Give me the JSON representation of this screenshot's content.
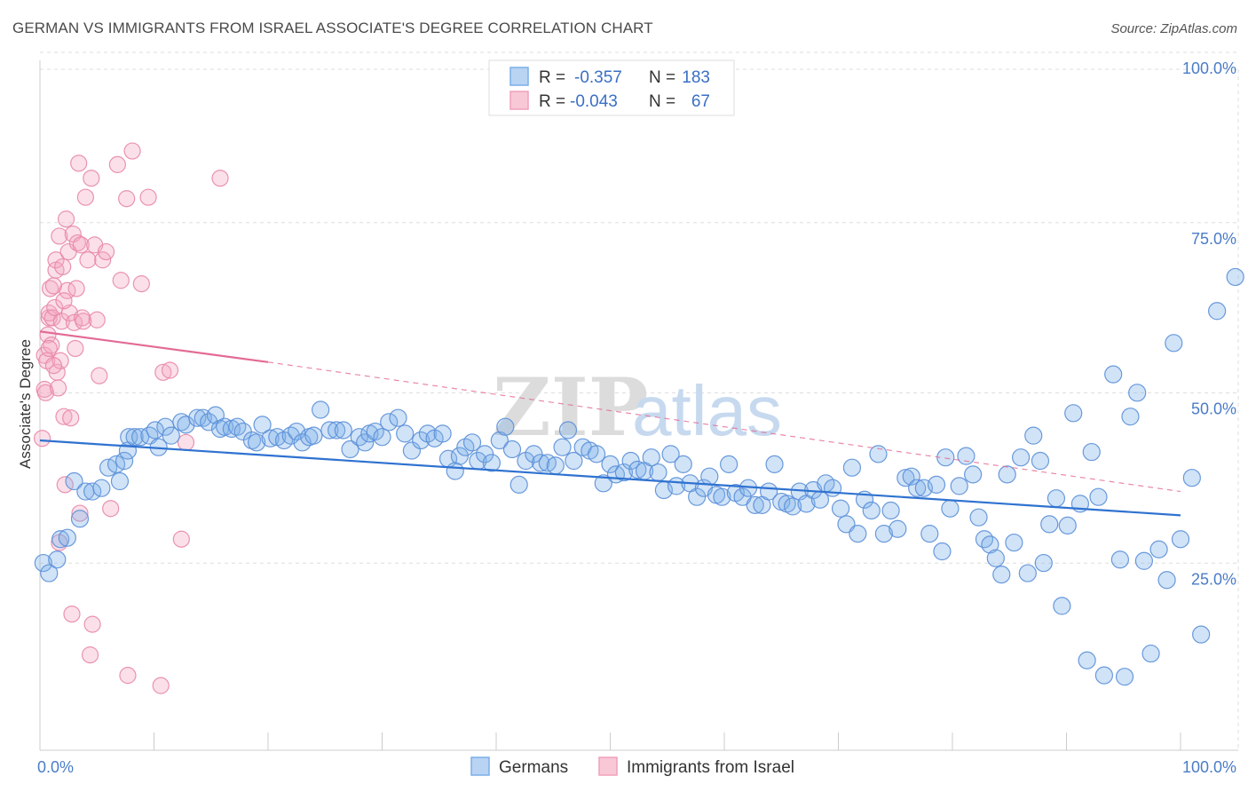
{
  "title": "GERMAN VS IMMIGRANTS FROM ISRAEL ASSOCIATE'S DEGREE CORRELATION CHART",
  "source": "Source: ZipAtlas.com",
  "watermark": {
    "zip": "ZIP",
    "atlas": "atlas"
  },
  "legend": {
    "r_label": "R =",
    "n_label": "N =",
    "series": [
      {
        "r": "-0.357",
        "n": "183"
      },
      {
        "r": "-0.043",
        "n": "67"
      }
    ]
  },
  "chart_data": {
    "type": "scatter",
    "title": "GERMAN VS IMMIGRANTS FROM ISRAEL ASSOCIATE'S DEGREE CORRELATION CHART",
    "xlabel": "",
    "ylabel": "Associate's Degree",
    "xlim": [
      0,
      100
    ],
    "ylim": [
      0,
      100
    ],
    "x_tick_labels": [
      "0.0%",
      "100.0%"
    ],
    "y_tick_labels": [
      "25.0%",
      "50.0%",
      "75.0%",
      "100.0%"
    ],
    "y_ticks": [
      25,
      50,
      75,
      100
    ],
    "grid": true,
    "legend_position": "top-center",
    "series": [
      {
        "name": "Germans",
        "color": "#7aaee8",
        "edge": "#5a8fd8",
        "r": -0.357,
        "n": 183,
        "trend": {
          "x": [
            0,
            100
          ],
          "y": [
            45.5,
            34.5
          ],
          "color": "#2f72d0"
        },
        "points": [
          [
            0.3,
            27.5
          ],
          [
            1.5,
            28
          ],
          [
            0.8,
            26
          ],
          [
            1.8,
            31
          ],
          [
            2.4,
            31.2
          ],
          [
            3,
            39.5
          ],
          [
            3.5,
            34
          ],
          [
            4,
            38
          ],
          [
            4.6,
            38
          ],
          [
            5.4,
            38.5
          ],
          [
            6,
            41.5
          ],
          [
            6.7,
            42
          ],
          [
            7,
            39.5
          ],
          [
            7.4,
            42.5
          ],
          [
            7.7,
            44
          ],
          [
            7.8,
            46
          ],
          [
            8.3,
            46
          ],
          [
            8.8,
            46
          ],
          [
            9.6,
            46.2
          ],
          [
            10.1,
            47
          ],
          [
            10.4,
            44.5
          ],
          [
            11,
            47.5
          ],
          [
            11.5,
            46.2
          ],
          [
            12.4,
            48.2
          ],
          [
            12.8,
            47.8
          ],
          [
            13.8,
            48.8
          ],
          [
            14.3,
            48.8
          ],
          [
            14.8,
            48.2
          ],
          [
            15.4,
            49.2
          ],
          [
            15.8,
            47.2
          ],
          [
            16.2,
            47.5
          ],
          [
            16.8,
            47.2
          ],
          [
            17.3,
            47.5
          ],
          [
            17.8,
            46.8
          ],
          [
            18.6,
            45.5
          ],
          [
            19,
            45.2
          ],
          [
            19.5,
            47.8
          ],
          [
            20.2,
            45.8
          ],
          [
            20.8,
            46
          ],
          [
            21.4,
            45.5
          ],
          [
            22,
            46.2
          ],
          [
            22.5,
            46.8
          ],
          [
            23,
            45.2
          ],
          [
            23.6,
            46
          ],
          [
            24,
            46.2
          ],
          [
            24.6,
            50
          ],
          [
            25.4,
            47
          ],
          [
            26,
            47
          ],
          [
            26.6,
            47
          ],
          [
            27.2,
            44.2
          ],
          [
            28,
            46
          ],
          [
            28.5,
            45.2
          ],
          [
            28.9,
            46.5
          ],
          [
            29.4,
            46.8
          ],
          [
            30,
            46
          ],
          [
            30.6,
            48.2
          ],
          [
            31.4,
            48.8
          ],
          [
            32,
            46.5
          ],
          [
            32.6,
            44
          ],
          [
            33.4,
            45.5
          ],
          [
            34,
            46.5
          ],
          [
            34.6,
            45.8
          ],
          [
            35.3,
            46.5
          ],
          [
            35.8,
            42.8
          ],
          [
            36.4,
            41
          ],
          [
            36.8,
            43.2
          ],
          [
            37.3,
            44.5
          ],
          [
            37.9,
            45.2
          ],
          [
            38.4,
            42.5
          ],
          [
            39,
            43.5
          ],
          [
            39.6,
            42.2
          ],
          [
            40.3,
            45.5
          ],
          [
            40.8,
            47.5
          ],
          [
            41.4,
            44.2
          ],
          [
            42,
            39
          ],
          [
            42.6,
            42.5
          ],
          [
            43.3,
            43.5
          ],
          [
            43.9,
            42.2
          ],
          [
            44.5,
            42.2
          ],
          [
            45.2,
            41.8
          ],
          [
            45.8,
            44.5
          ],
          [
            46.3,
            47
          ],
          [
            46.8,
            42.5
          ],
          [
            47.6,
            44.5
          ],
          [
            48.2,
            44
          ],
          [
            48.8,
            43.5
          ],
          [
            49.4,
            39.2
          ],
          [
            50,
            42
          ],
          [
            50.5,
            40.5
          ],
          [
            51.2,
            40.8
          ],
          [
            51.8,
            42.5
          ],
          [
            52.4,
            41.2
          ],
          [
            53,
            41
          ],
          [
            53.6,
            43
          ],
          [
            54.2,
            40.8
          ],
          [
            54.7,
            38.2
          ],
          [
            55.3,
            43.5
          ],
          [
            55.8,
            38.8
          ],
          [
            56.4,
            42
          ],
          [
            57,
            39.2
          ],
          [
            57.6,
            37.2
          ],
          [
            58.2,
            38.5
          ],
          [
            58.7,
            40.2
          ],
          [
            59.3,
            37.5
          ],
          [
            59.8,
            37.2
          ],
          [
            60.4,
            42
          ],
          [
            61,
            37.8
          ],
          [
            61.6,
            37.2
          ],
          [
            62.1,
            38.5
          ],
          [
            62.7,
            36
          ],
          [
            63.3,
            36
          ],
          [
            63.9,
            38
          ],
          [
            64.4,
            42
          ],
          [
            65,
            36.5
          ],
          [
            65.5,
            36.2
          ],
          [
            66,
            35.8
          ],
          [
            66.6,
            38
          ],
          [
            67.2,
            36.2
          ],
          [
            67.8,
            38.2
          ],
          [
            68.4,
            36.8
          ],
          [
            68.9,
            39.2
          ],
          [
            69.5,
            38.5
          ],
          [
            70.2,
            35.5
          ],
          [
            70.7,
            33.2
          ],
          [
            71.2,
            41.5
          ],
          [
            71.7,
            31.8
          ],
          [
            72.3,
            36.8
          ],
          [
            72.9,
            35.2
          ],
          [
            73.5,
            43.5
          ],
          [
            74,
            31.8
          ],
          [
            74.6,
            35.2
          ],
          [
            75.2,
            32.5
          ],
          [
            75.9,
            40
          ],
          [
            76.4,
            40.2
          ],
          [
            76.9,
            38.5
          ],
          [
            77.5,
            38.5
          ],
          [
            78,
            31.8
          ],
          [
            78.6,
            39
          ],
          [
            79.1,
            29.2
          ],
          [
            79.4,
            43
          ],
          [
            79.8,
            35.5
          ],
          [
            80.6,
            38.8
          ],
          [
            81.2,
            43.2
          ],
          [
            81.8,
            40.5
          ],
          [
            82.3,
            34.2
          ],
          [
            82.8,
            31
          ],
          [
            83.3,
            30.2
          ],
          [
            83.8,
            28.2
          ],
          [
            84.3,
            25.8
          ],
          [
            84.8,
            40.5
          ],
          [
            85.4,
            30.5
          ],
          [
            86,
            43
          ],
          [
            86.6,
            26
          ],
          [
            87.1,
            46.2
          ],
          [
            87.7,
            42.5
          ],
          [
            88,
            27.5
          ],
          [
            88.5,
            33.2
          ],
          [
            89.1,
            37
          ],
          [
            89.6,
            21.2
          ],
          [
            90.1,
            33
          ],
          [
            90.6,
            49.5
          ],
          [
            91.2,
            36.2
          ],
          [
            91.8,
            13.2
          ],
          [
            92.2,
            43.8
          ],
          [
            92.8,
            37.2
          ],
          [
            93.3,
            11
          ],
          [
            94.1,
            55.2
          ],
          [
            94.7,
            28
          ],
          [
            95.1,
            10.8
          ],
          [
            95.6,
            49
          ],
          [
            96.2,
            52.5
          ],
          [
            96.8,
            27.8
          ],
          [
            97.4,
            14.2
          ],
          [
            98.1,
            29.5
          ],
          [
            98.8,
            25
          ],
          [
            99.4,
            59.8
          ],
          [
            100,
            31
          ],
          [
            101,
            40
          ],
          [
            101.8,
            17
          ],
          [
            103.2,
            64.5
          ],
          [
            104.8,
            69.5
          ]
        ]
      },
      {
        "name": "Immigrants from Israel",
        "color": "#f4a7bf",
        "edge": "#e887a8",
        "r": -0.043,
        "n": 67,
        "trend_solid": {
          "x": [
            0,
            20
          ],
          "y": [
            61.5,
            57
          ]
        },
        "trend_dashed": {
          "x": [
            20,
            100
          ],
          "y": [
            57,
            38
          ]
        },
        "trend_color": "#e36a95",
        "points": [
          [
            0.2,
            45.8
          ],
          [
            0.4,
            53
          ],
          [
            0.4,
            58
          ],
          [
            0.5,
            52.5
          ],
          [
            0.6,
            57.2
          ],
          [
            0.7,
            61
          ],
          [
            0.8,
            63.5
          ],
          [
            0.8,
            64.2
          ],
          [
            0.9,
            67.8
          ],
          [
            1,
            59.5
          ],
          [
            1.1,
            63.5
          ],
          [
            1.2,
            68.2
          ],
          [
            1.3,
            65
          ],
          [
            1.4,
            70.5
          ],
          [
            1.4,
            72
          ],
          [
            1.5,
            55.5
          ],
          [
            1.6,
            53.2
          ],
          [
            1.7,
            75.5
          ],
          [
            1.7,
            30.5
          ],
          [
            1.8,
            57.2
          ],
          [
            1.9,
            63
          ],
          [
            2,
            71
          ],
          [
            2.1,
            49
          ],
          [
            2.2,
            39
          ],
          [
            2.3,
            78
          ],
          [
            2.4,
            67.5
          ],
          [
            2.5,
            73.2
          ],
          [
            2.6,
            64.2
          ],
          [
            2.7,
            48.8
          ],
          [
            2.8,
            20
          ],
          [
            2.9,
            75.8
          ],
          [
            3,
            62.8
          ],
          [
            3.1,
            59
          ],
          [
            3.2,
            67.8
          ],
          [
            3.3,
            74.5
          ],
          [
            3.4,
            86.2
          ],
          [
            3.5,
            34.8
          ],
          [
            3.6,
            74.2
          ],
          [
            3.7,
            63.5
          ],
          [
            3.8,
            63
          ],
          [
            4,
            81.2
          ],
          [
            4.2,
            72
          ],
          [
            4.4,
            14
          ],
          [
            4.5,
            84
          ],
          [
            4.6,
            18.5
          ],
          [
            4.8,
            74.2
          ],
          [
            5,
            63.2
          ],
          [
            5.2,
            55
          ],
          [
            5.5,
            72
          ],
          [
            5.8,
            73.2
          ],
          [
            6.2,
            35.5
          ],
          [
            6.8,
            86
          ],
          [
            7.1,
            69
          ],
          [
            7.6,
            81
          ],
          [
            8.1,
            88
          ],
          [
            8.9,
            68.5
          ],
          [
            9.5,
            81.2
          ],
          [
            10.6,
            9.5
          ],
          [
            10.8,
            55.5
          ],
          [
            11.4,
            55.8
          ],
          [
            12.4,
            31
          ],
          [
            12.8,
            45.2
          ],
          [
            15.8,
            84
          ],
          [
            7.7,
            11
          ],
          [
            2.1,
            66
          ],
          [
            0.8,
            59
          ],
          [
            1.2,
            56.5
          ]
        ]
      }
    ]
  }
}
